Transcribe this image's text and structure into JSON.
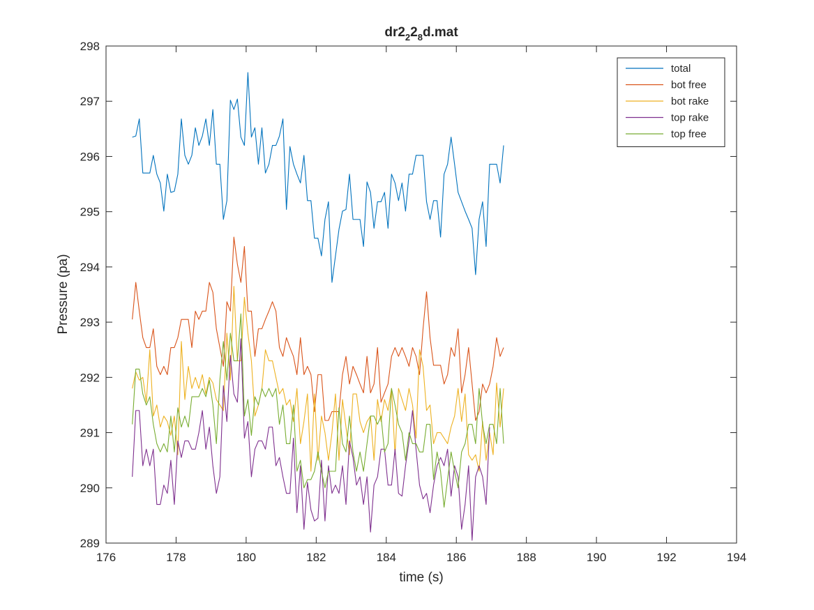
{
  "chart_data": {
    "type": "line",
    "title": "dr2",
    "title_sub_1": "2",
    "title_mid": "2",
    "title_sub_2": "8",
    "title_end": "d.mat",
    "xlabel": "time (s)",
    "ylabel": "Pressure (pa)",
    "xlim": [
      176,
      194
    ],
    "ylim": [
      289,
      298
    ],
    "xticks": [
      176,
      178,
      180,
      182,
      184,
      186,
      188,
      190,
      192,
      194
    ],
    "yticks": [
      289,
      290,
      291,
      292,
      293,
      294,
      295,
      296,
      297,
      298
    ],
    "grid": false,
    "legend_position": "top-right",
    "x_start": 176.75,
    "x_step": 0.1,
    "series": [
      {
        "name": "total",
        "color": "#0072BD",
        "values": [
          296.35,
          296.37,
          296.68,
          295.7,
          295.7,
          295.7,
          296.02,
          295.68,
          295.52,
          295.01,
          295.68,
          295.35,
          295.37,
          295.68,
          296.68,
          296.02,
          295.86,
          296.02,
          296.52,
          296.2,
          296.37,
          296.68,
          296.2,
          296.85,
          295.86,
          295.86,
          294.86,
          295.2,
          297.02,
          296.85,
          297.04,
          296.35,
          296.2,
          297.52,
          296.35,
          296.52,
          295.86,
          296.52,
          295.7,
          295.86,
          296.2,
          296.2,
          296.37,
          296.68,
          295.04,
          296.18,
          295.86,
          295.68,
          295.52,
          296.02,
          295.2,
          295.2,
          294.52,
          294.52,
          294.2,
          294.86,
          295.18,
          293.72,
          294.2,
          294.68,
          295.01,
          295.04,
          295.68,
          294.86,
          294.86,
          294.86,
          294.37,
          295.54,
          295.35,
          294.7,
          295.18,
          295.18,
          295.35,
          294.7,
          295.68,
          295.52,
          295.2,
          295.52,
          295.01,
          295.68,
          295.68,
          296.02,
          296.02,
          296.02,
          295.18,
          294.86,
          295.2,
          295.2,
          294.54,
          295.68,
          295.86,
          296.35,
          295.86,
          295.35,
          295.18,
          295.01,
          294.86,
          294.7,
          293.86,
          294.86,
          295.18,
          294.37,
          295.86,
          295.86,
          295.86,
          295.52,
          296.2
        ]
      },
      {
        "name": "bot free",
        "color": "#D95319",
        "values": [
          293.05,
          293.72,
          293.2,
          292.72,
          292.54,
          292.54,
          292.88,
          292.2,
          292.05,
          292.2,
          292.05,
          292.54,
          292.54,
          292.72,
          293.05,
          293.05,
          293.05,
          292.54,
          293.2,
          293.05,
          293.2,
          293.2,
          293.72,
          293.54,
          292.88,
          292.54,
          292.2,
          293.37,
          293.2,
          294.54,
          294.05,
          293.72,
          294.37,
          293.2,
          293.2,
          292.38,
          292.88,
          292.88,
          293.05,
          293.2,
          293.37,
          293.2,
          292.54,
          292.38,
          292.72,
          292.54,
          292.38,
          292.05,
          292.72,
          292.05,
          292.2,
          292.05,
          291.38,
          292.05,
          292.05,
          291.22,
          291.22,
          291.38,
          291.38,
          291.38,
          292.05,
          292.38,
          291.88,
          292.2,
          292.05,
          291.88,
          291.72,
          292.38,
          291.72,
          291.88,
          292.54,
          291.55,
          291.72,
          291.88,
          292.38,
          292.54,
          292.38,
          292.54,
          292.38,
          292.2,
          292.54,
          292.38,
          292.05,
          292.88,
          293.55,
          292.72,
          292.22,
          292.22,
          292.22,
          291.88,
          292.05,
          292.54,
          292.38,
          292.88,
          291.72,
          292.05,
          292.54,
          291.88,
          291.22,
          291.38,
          291.88,
          291.72,
          291.88,
          292.2,
          292.72,
          292.38,
          292.54
        ]
      },
      {
        "name": "bot rake",
        "color": "#EDB120",
        "values": [
          291.8,
          292.1,
          291.95,
          292.0,
          291.55,
          292.5,
          291.3,
          291.5,
          291.1,
          291.3,
          291.2,
          290.95,
          291.3,
          290.6,
          292.65,
          291.6,
          292.2,
          291.8,
          292.0,
          291.8,
          292.05,
          291.7,
          292.0,
          291.9,
          291.6,
          291.5,
          291.4,
          292.8,
          291.95,
          293.65,
          292.3,
          292.3,
          293.45,
          292.8,
          292.3,
          291.3,
          291.5,
          291.8,
          292.5,
          292.3,
          292.3,
          292.0,
          291.7,
          291.8,
          291.5,
          291.6,
          291.2,
          291.8,
          290.8,
          291.2,
          291.7,
          290.3,
          291.7,
          290.5,
          291.3,
          291.0,
          290.5,
          291.0,
          291.7,
          290.5,
          291.6,
          291.1,
          290.6,
          291.7,
          291.7,
          291.2,
          291.0,
          291.2,
          291.3,
          290.5,
          291.6,
          291.2,
          291.6,
          291.4,
          291.8,
          290.6,
          291.8,
          291.6,
          291.4,
          291.8,
          291.5,
          290.9,
          292.5,
          292.2,
          291.4,
          291.5,
          290.8,
          291.0,
          291.0,
          290.9,
          290.8,
          291.1,
          291.3,
          291.8,
          291.2,
          291.7,
          290.6,
          290.5,
          290.6,
          290.3,
          291.2,
          290.5,
          291.0,
          290.6,
          291.9,
          291.1,
          291.8
        ]
      },
      {
        "name": "top rake",
        "color": "#7E2F8E",
        "values": [
          290.2,
          291.4,
          291.4,
          290.4,
          290.7,
          290.4,
          290.7,
          289.7,
          289.7,
          290.05,
          289.9,
          290.5,
          289.7,
          290.85,
          290.55,
          290.85,
          290.85,
          290.7,
          290.7,
          291.0,
          291.4,
          290.7,
          291.1,
          290.4,
          289.9,
          290.2,
          291.85,
          291.2,
          292.4,
          291.7,
          291.55,
          292.7,
          290.9,
          291.2,
          290.2,
          290.7,
          290.85,
          290.85,
          290.7,
          291.1,
          291.1,
          290.4,
          290.55,
          290.2,
          289.9,
          289.9,
          290.9,
          289.55,
          290.4,
          289.25,
          290.1,
          289.6,
          289.4,
          289.45,
          290.5,
          289.4,
          290.4,
          289.9,
          290.05,
          289.9,
          290.4,
          289.7,
          290.85,
          290.55,
          290.05,
          290.2,
          289.7,
          290.2,
          289.2,
          290.05,
          290.2,
          290.7,
          290.7,
          290.05,
          290.05,
          290.7,
          289.9,
          289.85,
          290.4,
          290.85,
          291.4,
          290.7,
          290.05,
          289.8,
          289.9,
          289.55,
          290.05,
          290.4,
          290.55,
          290.4,
          290.7,
          289.85,
          290.4,
          290.2,
          289.25,
          289.7,
          290.4,
          289.05,
          290.2,
          290.4,
          290.2,
          289.7,
          291.1
        ]
      },
      {
        "name": "top free",
        "color": "#77AC30",
        "values": [
          291.15,
          292.15,
          292.15,
          291.7,
          291.5,
          291.65,
          291.15,
          290.8,
          290.65,
          290.8,
          290.65,
          291.3,
          290.65,
          291.45,
          291.1,
          291.3,
          291.1,
          291.65,
          291.65,
          291.65,
          291.8,
          291.65,
          291.95,
          291.5,
          290.8,
          291.95,
          292.65,
          291.95,
          292.8,
          292.3,
          292.3,
          293.15,
          291.3,
          291.6,
          290.95,
          291.65,
          291.5,
          291.8,
          291.65,
          291.8,
          291.65,
          291.8,
          291.15,
          291.5,
          290.8,
          290.8,
          291.5,
          290.3,
          290.5,
          290.0,
          290.15,
          290.15,
          290.3,
          290.65,
          290.3,
          290.0,
          290.3,
          290.3,
          290.3,
          291.45,
          290.8,
          290.65,
          291.3,
          290.65,
          290.3,
          290.65,
          290.3,
          290.8,
          291.3,
          291.3,
          291.15,
          291.3,
          290.65,
          290.8,
          291.8,
          291.5,
          291.15,
          291.0,
          290.5,
          291.0,
          290.8,
          290.8,
          290.65,
          290.65,
          291.15,
          291.15,
          290.15,
          290.65,
          290.3,
          289.65,
          290.15,
          290.65,
          290.3,
          290.0,
          290.65,
          290.8,
          291.15,
          291.15,
          290.8,
          291.8,
          291.15,
          290.8,
          291.15,
          291.15,
          290.8,
          291.8,
          290.8
        ]
      }
    ]
  }
}
